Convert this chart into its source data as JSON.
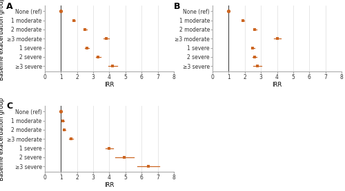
{
  "panels": [
    {
      "label": "A",
      "xlabel": "IRR",
      "xlim": [
        0,
        8
      ],
      "xticks": [
        0,
        1,
        2,
        3,
        4,
        5,
        6,
        7,
        8
      ],
      "categories": [
        "None (ref)",
        "1 moderate",
        "2 moderate",
        "≥3 moderate",
        "1 severe",
        "2 severe",
        "≥3 severe"
      ],
      "irr": [
        1.0,
        1.8,
        2.5,
        3.8,
        2.62,
        3.3,
        4.2
      ],
      "ci_lo": [
        1.0,
        1.72,
        2.4,
        3.62,
        2.5,
        3.15,
        3.95
      ],
      "ci_hi": [
        1.0,
        1.88,
        2.6,
        3.98,
        2.74,
        3.45,
        4.48
      ],
      "is_ref": [
        true,
        false,
        false,
        false,
        false,
        false,
        false
      ]
    },
    {
      "label": "B",
      "xlabel": "IRR",
      "xlim": [
        0,
        8
      ],
      "xticks": [
        0,
        1,
        2,
        3,
        4,
        5,
        6,
        7,
        8
      ],
      "categories": [
        "None (ref)",
        "1 moderate",
        "2 moderate",
        "≥3 moderate",
        "1 severe",
        "2 severe",
        "≥3 severe"
      ],
      "irr": [
        1.0,
        1.9,
        2.62,
        4.02,
        2.5,
        2.6,
        2.78
      ],
      "ci_lo": [
        1.0,
        1.82,
        2.52,
        3.82,
        2.38,
        2.48,
        2.52
      ],
      "ci_hi": [
        1.0,
        1.98,
        2.72,
        4.22,
        2.62,
        2.72,
        3.05
      ],
      "is_ref": [
        true,
        false,
        false,
        false,
        false,
        false,
        false
      ]
    },
    {
      "label": "C",
      "xlabel": "IRR",
      "xlim": [
        0,
        8
      ],
      "xticks": [
        0,
        1,
        2,
        3,
        4,
        5,
        6,
        7,
        8
      ],
      "categories": [
        "None (ref)",
        "1 moderate",
        "2 moderate",
        "≥3 moderate",
        "1 severe",
        "2 severe",
        "≥3 severe"
      ],
      "irr": [
        1.0,
        1.1,
        1.2,
        1.62,
        4.0,
        4.92,
        6.4
      ],
      "ci_lo": [
        1.0,
        1.02,
        1.1,
        1.48,
        3.75,
        4.35,
        5.72
      ],
      "ci_hi": [
        1.0,
        1.18,
        1.3,
        1.76,
        4.25,
        5.5,
        7.1
      ],
      "is_ref": [
        true,
        false,
        false,
        false,
        false,
        false,
        false
      ]
    }
  ],
  "dot_color": "#CC6622",
  "line_color": "#CC6622",
  "ref_line_color": "#444444",
  "bg_color": "#ffffff",
  "grid_color": "#dddddd",
  "ylabel": "Baseline exacerbation group",
  "label_fontsize": 5.5,
  "tick_fontsize": 5.5,
  "axis_label_fontsize": 6.0,
  "panel_label_fontsize": 9
}
